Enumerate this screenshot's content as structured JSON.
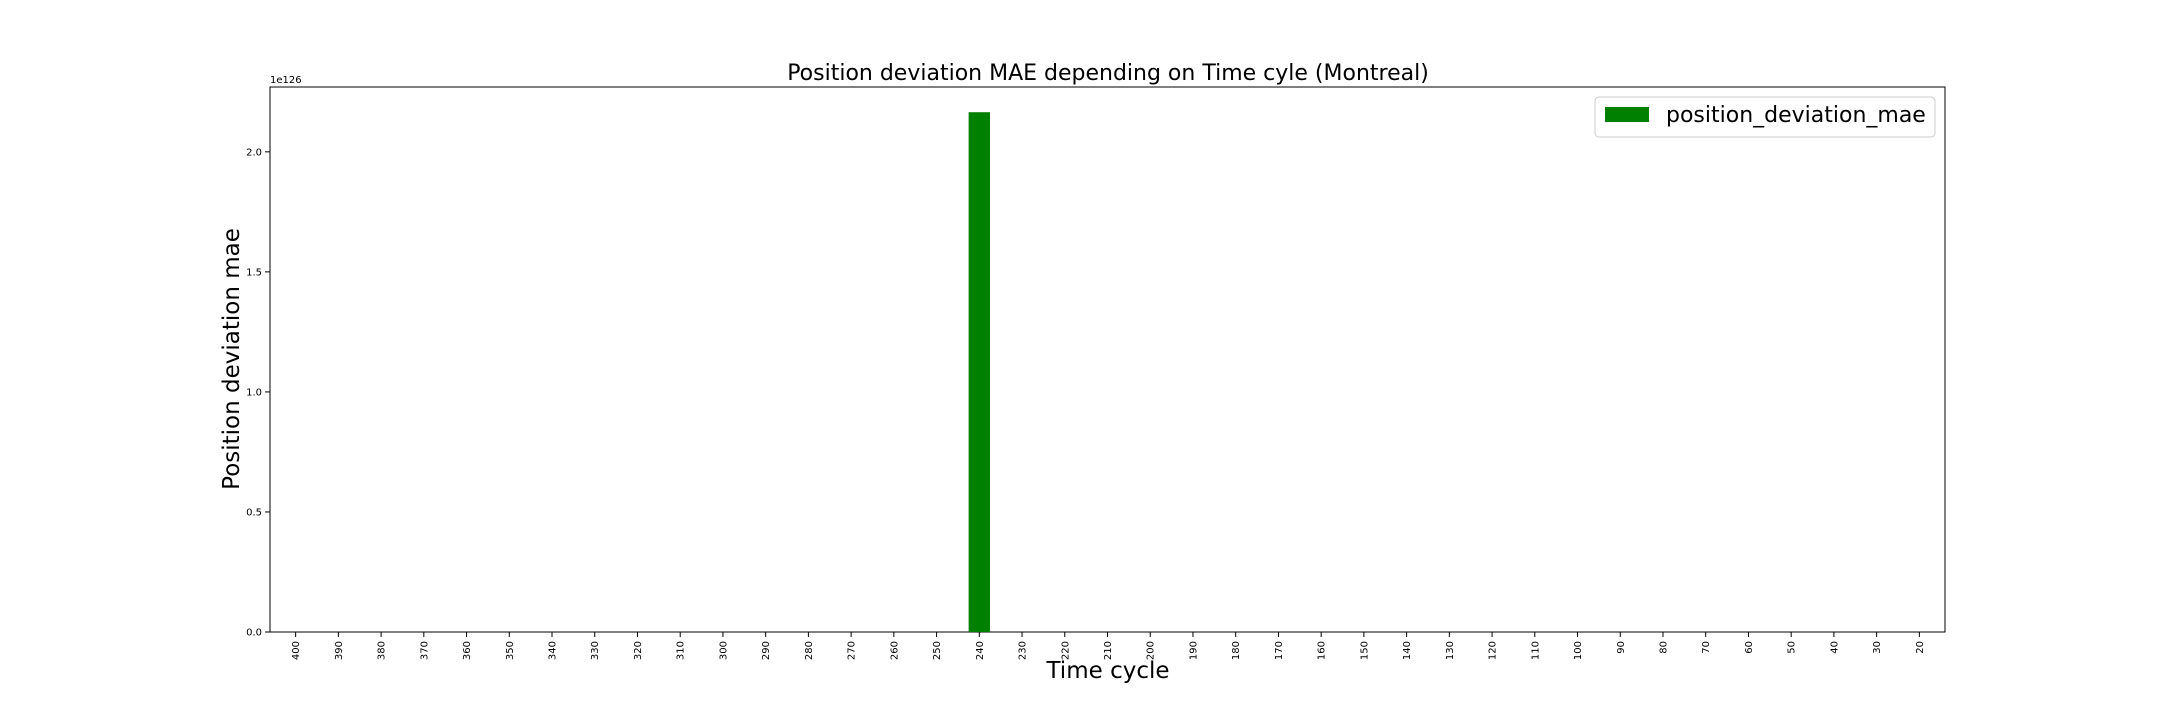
{
  "chart_data": {
    "type": "bar",
    "title": "Position deviation MAE depending on Time cyle (Montreal)",
    "xlabel": "Time cycle",
    "ylabel": "Position deviation mae",
    "y_scale_label": "1e126",
    "y_scale_exponent": 126,
    "ylim": [
      0,
      2.27
    ],
    "yticks": [
      0.0,
      0.5,
      1.0,
      1.5,
      2.0
    ],
    "ytick_labels": [
      "0.0",
      "0.5",
      "1.0",
      "1.5",
      "2.0"
    ],
    "categories": [
      "400",
      "390",
      "380",
      "370",
      "360",
      "350",
      "340",
      "330",
      "320",
      "310",
      "300",
      "290",
      "280",
      "270",
      "260",
      "250",
      "240",
      "230",
      "220",
      "210",
      "200",
      "190",
      "180",
      "170",
      "160",
      "150",
      "140",
      "130",
      "120",
      "110",
      "100",
      "90",
      "80",
      "70",
      "60",
      "50",
      "40",
      "30",
      "20"
    ],
    "series": [
      {
        "name": "position_deviation_mae",
        "color": "#008000",
        "values": [
          0,
          0,
          0,
          0,
          0,
          0,
          0,
          0,
          0,
          0,
          0,
          0,
          0,
          0,
          0,
          0,
          2.165,
          0,
          0,
          0,
          0,
          0,
          0,
          0,
          0,
          0,
          0,
          0,
          0,
          0,
          0,
          0,
          0,
          0,
          0,
          0,
          0,
          0,
          0
        ]
      }
    ],
    "legend": {
      "position": "top-right",
      "entries": [
        "position_deviation_mae"
      ]
    },
    "grid": false
  }
}
